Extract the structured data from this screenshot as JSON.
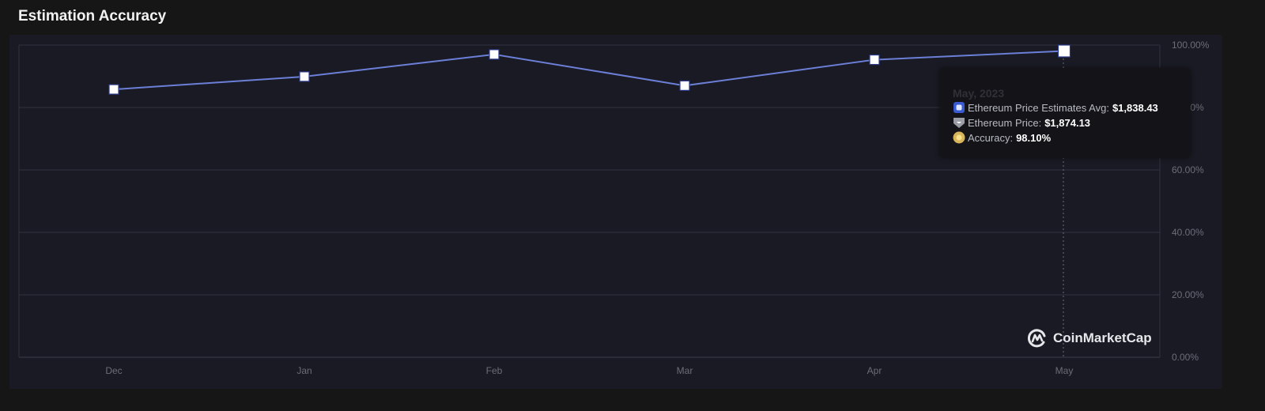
{
  "header": {
    "title": "Estimation Accuracy"
  },
  "colors": {
    "line": "#6b7fd7",
    "marker_fill": "#ffffff",
    "marker_stroke": "#2a3a8c",
    "panel_bg": "#1a1a24",
    "page_bg": "#161616",
    "grid": "#32333f",
    "tooltip_bg": "#141418"
  },
  "y_axis": {
    "labels": [
      "100.00%",
      "80.00%",
      "60.00%",
      "40.00%",
      "20.00%",
      "0.00%"
    ]
  },
  "x_axis": {
    "labels": [
      "Dec",
      "Jan",
      "Feb",
      "Mar",
      "Apr",
      "May"
    ]
  },
  "tooltip": {
    "date": "May, 2023",
    "rows": [
      {
        "icon": "square-marker-icon",
        "label": "Ethereum Price Estimates Avg:",
        "value": "$1,838.43"
      },
      {
        "icon": "shield-marker-icon",
        "label": "Ethereum Price:",
        "value": "$1,874.13"
      },
      {
        "icon": "circle-marker-icon",
        "label": "Accuracy:",
        "value": "98.10%"
      }
    ]
  },
  "watermark": {
    "text": "CoinMarketCap"
  },
  "chart_data": {
    "type": "line",
    "title": "Estimation Accuracy",
    "categories": [
      "Dec",
      "Jan",
      "Feb",
      "Mar",
      "Apr",
      "May"
    ],
    "series": [
      {
        "name": "Accuracy",
        "values": [
          85.8,
          89.9,
          97.0,
          87.0,
          95.3,
          98.1
        ]
      }
    ],
    "xlabel": "",
    "ylabel": "",
    "ylim": [
      0,
      100
    ],
    "y_ticks": [
      "0.00%",
      "20.00%",
      "40.00%",
      "60.00%",
      "80.00%",
      "100.00%"
    ],
    "grid": true,
    "y_axis_position": "right",
    "highlighted_point": {
      "category": "May",
      "date": "May, 2023",
      "estimates_avg": "$1,838.43",
      "price": "$1,874.13",
      "accuracy": "98.10%"
    }
  }
}
